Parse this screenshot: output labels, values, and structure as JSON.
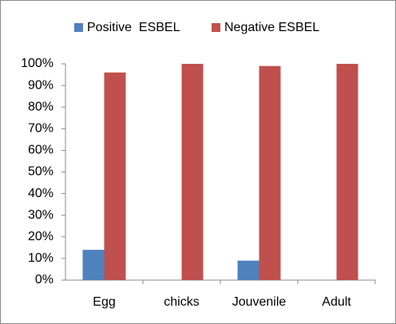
{
  "chart_data": {
    "type": "bar",
    "categories": [
      "Egg",
      "chicks",
      "Jouvenile",
      "Adult"
    ],
    "series": [
      {
        "name": "Positive  ESBEL",
        "color": "#4f81bd",
        "values": [
          14,
          0,
          9,
          0
        ]
      },
      {
        "name": "Negative ESBEL",
        "color": "#c0504d",
        "values": [
          96,
          100,
          99,
          100
        ]
      }
    ],
    "ylim": [
      0,
      100
    ],
    "yticks": [
      {
        "value": 0,
        "label": "0%"
      },
      {
        "value": 10,
        "label": "10%"
      },
      {
        "value": 20,
        "label": "20%"
      },
      {
        "value": 30,
        "label": "30%"
      },
      {
        "value": 40,
        "label": "40%"
      },
      {
        "value": 50,
        "label": "50%"
      },
      {
        "value": 60,
        "label": "60%"
      },
      {
        "value": 70,
        "label": "70%"
      },
      {
        "value": 80,
        "label": "80%"
      },
      {
        "value": 90,
        "label": "90%"
      },
      {
        "value": 100,
        "label": "100%"
      }
    ],
    "grid": false,
    "legend": "top"
  }
}
